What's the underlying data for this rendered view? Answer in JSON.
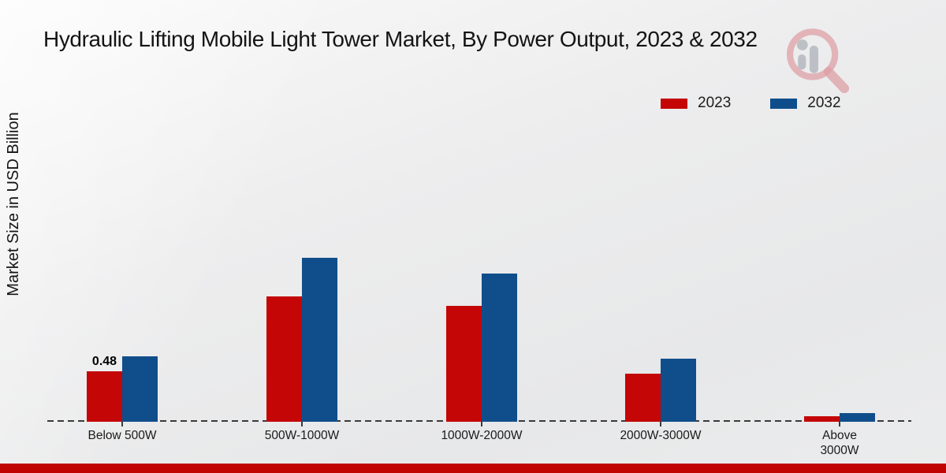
{
  "title": "Hydraulic Lifting Mobile Light Tower Market, By Power Output, 2023 & 2032",
  "ylabel": "Market Size in USD Billion",
  "legend": {
    "items": [
      {
        "label": "2023",
        "color": "#c40606"
      },
      {
        "label": "2032",
        "color": "#0f4e8b"
      }
    ]
  },
  "colors": {
    "series_2023": "#c40606",
    "series_2032": "#0f4e8b",
    "footer_band": "#c00404",
    "baseline": "#3a3a3a",
    "background": "#eaebec"
  },
  "watermark_icon": "magnifier-bar-chart-logo",
  "chart_data": {
    "type": "bar",
    "categories": [
      "Below 500W",
      "500W-1000W",
      "1000W-2000W",
      "2000W-3000W",
      "Above\n3000W"
    ],
    "series": [
      {
        "name": "2023",
        "color": "#c40606",
        "values": [
          0.48,
          1.19,
          1.1,
          0.46,
          0.05
        ]
      },
      {
        "name": "2032",
        "color": "#0f4e8b",
        "values": [
          0.62,
          1.56,
          1.41,
          0.6,
          0.08
        ]
      }
    ],
    "annotations": [
      {
        "series_index": 0,
        "category_index": 0,
        "text": "0.48"
      }
    ],
    "title": "Hydraulic Lifting Mobile Light Tower Market, By Power Output, 2023 & 2032",
    "xlabel": "",
    "ylabel": "Market Size in USD Billion",
    "ylim": [
      0,
      1.75
    ],
    "grid": false,
    "legend_position": "upper-right",
    "units": "USD Billion"
  },
  "footer": {
    "band": ""
  }
}
